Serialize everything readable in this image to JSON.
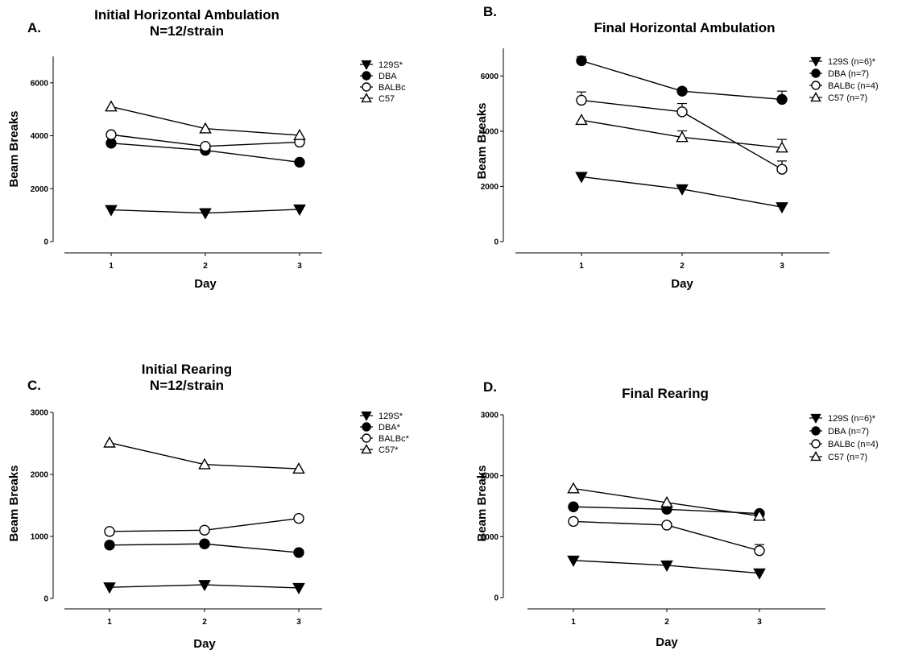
{
  "chart_data": [
    {
      "panel": "A.",
      "type": "line",
      "title": "Initial Horizontal Ambulation",
      "subtitle": "N=12/strain",
      "xlabel": "Day",
      "ylabel": "Beam Breaks",
      "x": [
        1,
        2,
        3
      ],
      "x_ticks": [
        "1",
        "2",
        "3"
      ],
      "y_ticks": [
        "0",
        "2000",
        "4000",
        "6000"
      ],
      "ylim": [
        0,
        7000
      ],
      "legend_placement": "top-right",
      "series": [
        {
          "name": "129S*",
          "marker": "triangle-down",
          "filled": true,
          "values": [
            1200,
            1080,
            1220
          ]
        },
        {
          "name": "DBA",
          "marker": "circle",
          "filled": true,
          "values": [
            3720,
            3450,
            3000
          ]
        },
        {
          "name": "BALBc",
          "marker": "circle",
          "filled": false,
          "values": [
            4040,
            3600,
            3760
          ]
        },
        {
          "name": "C57",
          "marker": "triangle-up",
          "filled": false,
          "values": [
            5100,
            4270,
            4020
          ]
        }
      ]
    },
    {
      "panel": "B.",
      "type": "line",
      "title": "Final Horizontal Ambulation",
      "subtitle": "",
      "xlabel": "Day",
      "ylabel": "Beam Breaks",
      "x": [
        1,
        2,
        3
      ],
      "x_ticks": [
        "1",
        "2",
        "3"
      ],
      "y_ticks": [
        "0",
        "2000",
        "4000",
        "6000"
      ],
      "ylim": [
        0,
        7000
      ],
      "legend_placement": "top-right",
      "series": [
        {
          "name": "129S (n=6)*",
          "marker": "triangle-down",
          "filled": true,
          "values": [
            2350,
            1900,
            1250
          ]
        },
        {
          "name": "DBA (n=7)",
          "marker": "circle",
          "filled": true,
          "values": [
            6550,
            5450,
            5150
          ],
          "errors": [
            150,
            0,
            300
          ]
        },
        {
          "name": "BALBc (n=4)",
          "marker": "circle",
          "filled": false,
          "values": [
            5120,
            4700,
            2620
          ],
          "errors": [
            300,
            300,
            300
          ]
        },
        {
          "name": "C57 (n=7)",
          "marker": "triangle-up",
          "filled": false,
          "values": [
            4400,
            3780,
            3400
          ],
          "errors": [
            0,
            230,
            300
          ]
        }
      ]
    },
    {
      "panel": "C.",
      "type": "line",
      "title": "Initial Rearing",
      "subtitle": "N=12/strain",
      "xlabel": "Day",
      "ylabel": "Beam Breaks",
      "x": [
        1,
        2,
        3
      ],
      "x_ticks": [
        "1",
        "2",
        "3"
      ],
      "y_ticks": [
        "0",
        "1000",
        "2000",
        "3000"
      ],
      "ylim": [
        0,
        3000
      ],
      "legend_placement": "top-right",
      "series": [
        {
          "name": "129S*",
          "marker": "triangle-down",
          "filled": true,
          "values": [
            180,
            220,
            170
          ]
        },
        {
          "name": "DBA*",
          "marker": "circle",
          "filled": true,
          "values": [
            860,
            880,
            740
          ]
        },
        {
          "name": "BALBc*",
          "marker": "circle",
          "filled": false,
          "values": [
            1080,
            1100,
            1290
          ]
        },
        {
          "name": "C57*",
          "marker": "triangle-up",
          "filled": false,
          "values": [
            2510,
            2160,
            2090
          ]
        }
      ]
    },
    {
      "panel": "D.",
      "type": "line",
      "title": "Final Rearing",
      "subtitle": "",
      "xlabel": "Day",
      "ylabel": "Beam Breaks",
      "x": [
        1,
        2,
        3
      ],
      "x_ticks": [
        "1",
        "2",
        "3"
      ],
      "y_ticks": [
        "0",
        "1000",
        "2000",
        "3000"
      ],
      "ylim": [
        0,
        3000
      ],
      "legend_placement": "top-right",
      "series": [
        {
          "name": "129S (n=6)*",
          "marker": "triangle-down",
          "filled": true,
          "values": [
            610,
            530,
            400
          ]
        },
        {
          "name": "DBA (n=7)",
          "marker": "circle",
          "filled": true,
          "values": [
            1490,
            1450,
            1380
          ]
        },
        {
          "name": "BALBc (n=4)",
          "marker": "circle",
          "filled": false,
          "values": [
            1250,
            1190,
            770
          ],
          "errors": [
            0,
            0,
            100
          ]
        },
        {
          "name": "C57 (n=7)",
          "marker": "triangle-up",
          "filled": false,
          "values": [
            1790,
            1560,
            1340
          ]
        }
      ]
    }
  ]
}
